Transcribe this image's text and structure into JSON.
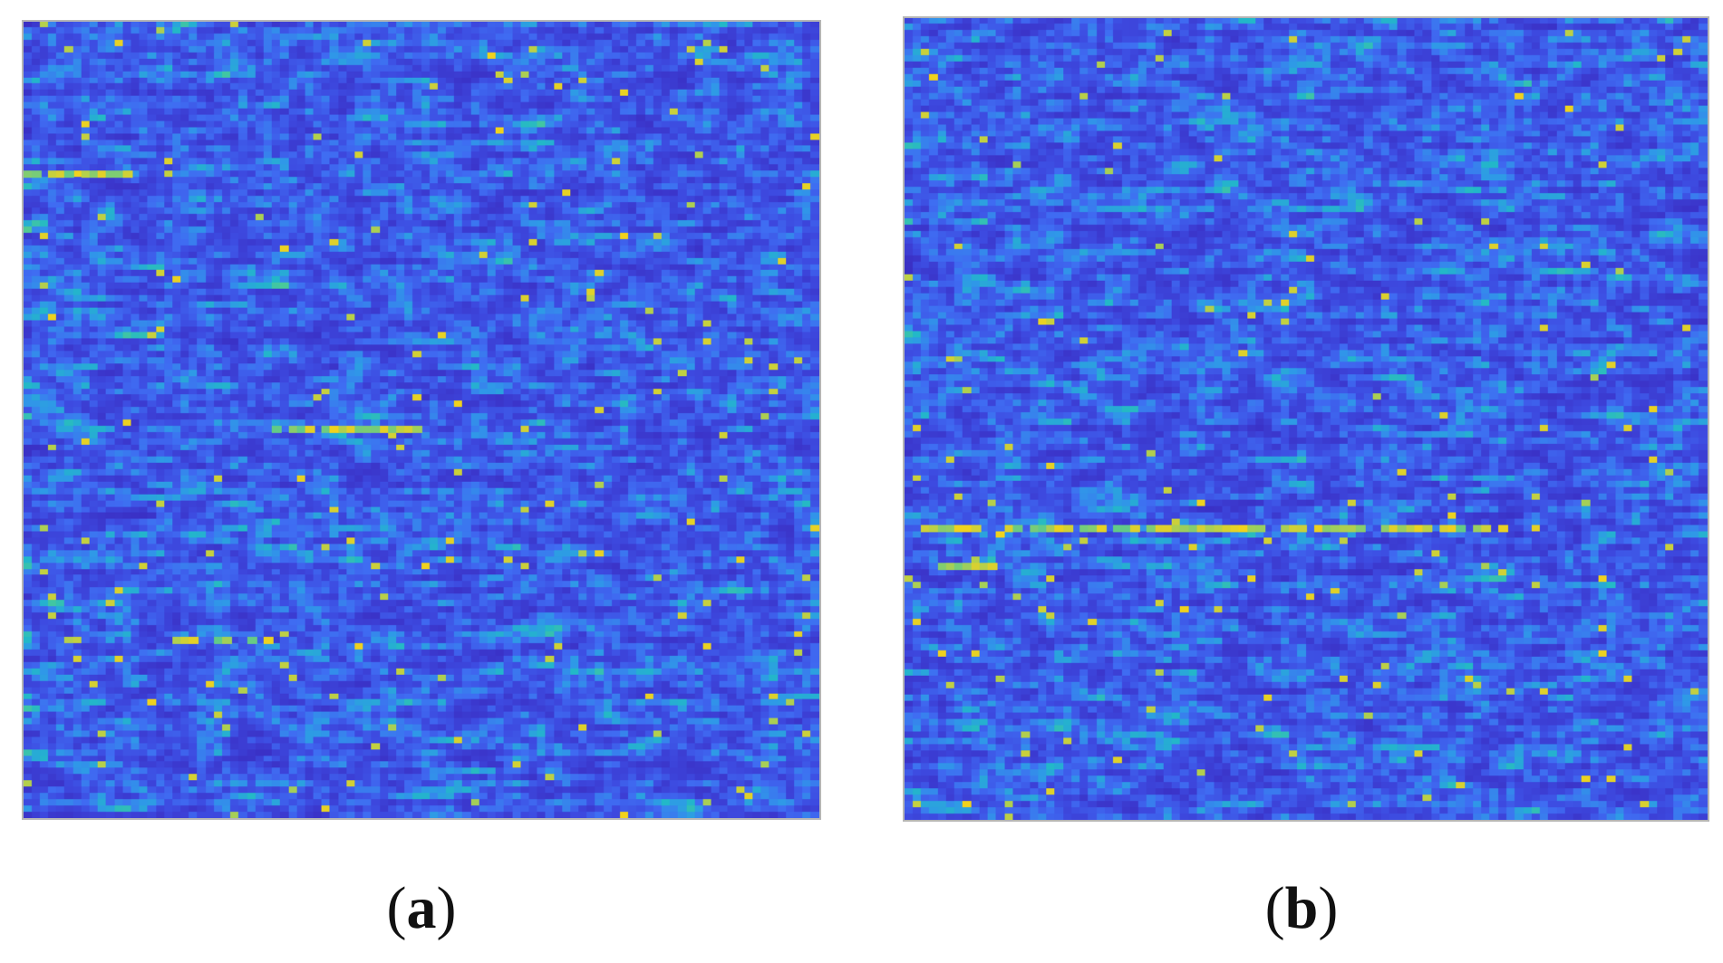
{
  "panels": [
    {
      "id": "a",
      "label": "a",
      "colormap": [
        "#3a2fc4",
        "#3d4ae0",
        "#3f6cf2",
        "#2f98e8",
        "#22b8c8",
        "#48c99a",
        "#a8cf55",
        "#f2d21c"
      ]
    },
    {
      "id": "b",
      "label": "b",
      "colormap": [
        "#3a2fc4",
        "#3d4ae0",
        "#3f6cf2",
        "#2f98e8",
        "#22b8c8",
        "#48c99a",
        "#a8cf55",
        "#f2d21c"
      ]
    }
  ],
  "paren_open": "(",
  "paren_close": ")"
}
